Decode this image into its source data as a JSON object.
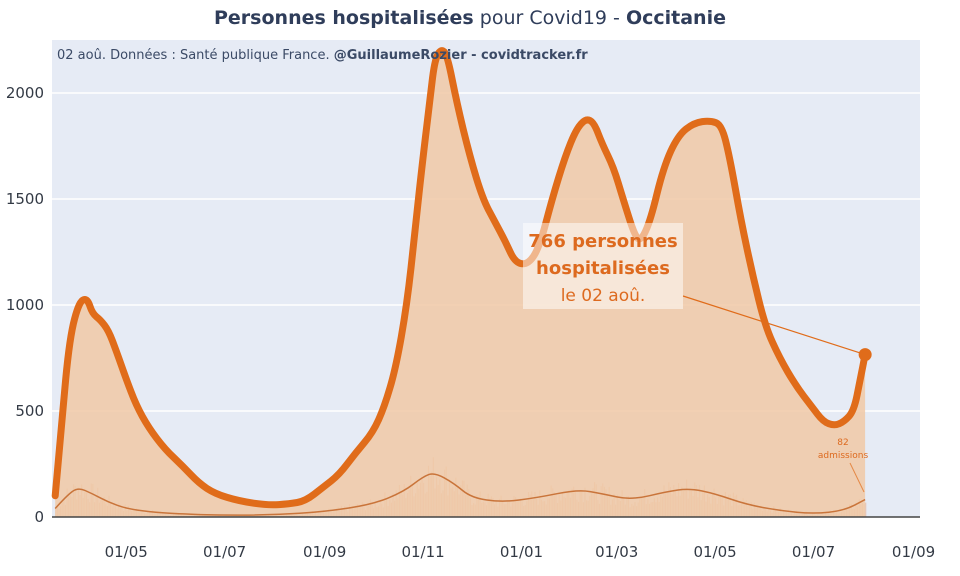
{
  "title": {
    "part1": "Personnes hospitalisées",
    "part2": " pour Covid19 - ",
    "part3": "Occitanie"
  },
  "subtitle": {
    "part1": "02 aoû. Données : Santé publique France. ",
    "part2": "@GuillaumeRozier - covidtracker.fr"
  },
  "annotation": {
    "line1": "766 personnes",
    "line2": "hospitalisées",
    "line3": "le 02 aoû."
  },
  "admissions_annotation": {
    "value": "82",
    "label": "admissions"
  },
  "colors": {
    "line": "#e06c1a",
    "area": "#f0c9a6",
    "plot_bg": "#e6ebf5",
    "grid": "#ffffff"
  },
  "chart_data": {
    "type": "area",
    "title": "Personnes hospitalisées pour Covid19 - Occitanie",
    "x_tick_labels": [
      "01/05",
      "01/07",
      "01/09",
      "01/11",
      "01/01",
      "01/03",
      "01/05",
      "01/07",
      "01/09"
    ],
    "y_tick_labels": [
      "0",
      "500",
      "1000",
      "1500",
      "2000"
    ],
    "ylim": [
      0,
      2250
    ],
    "grid": true,
    "series": [
      {
        "role": "hospitalized",
        "points": [
          [
            "2020-03-18",
            100
          ],
          [
            "2020-03-22",
            450
          ],
          [
            "2020-03-27",
            850
          ],
          [
            "2020-04-02",
            1020
          ],
          [
            "2020-04-07",
            1030
          ],
          [
            "2020-04-10",
            960
          ],
          [
            "2020-04-15",
            930
          ],
          [
            "2020-04-20",
            880
          ],
          [
            "2020-04-25",
            780
          ],
          [
            "2020-05-01",
            650
          ],
          [
            "2020-05-07",
            530
          ],
          [
            "2020-05-15",
            420
          ],
          [
            "2020-05-25",
            320
          ],
          [
            "2020-06-05",
            240
          ],
          [
            "2020-06-15",
            160
          ],
          [
            "2020-06-25",
            110
          ],
          [
            "2020-07-10",
            75
          ],
          [
            "2020-07-28",
            55
          ],
          [
            "2020-08-10",
            62
          ],
          [
            "2020-08-20",
            75
          ],
          [
            "2020-08-31",
            140
          ],
          [
            "2020-09-10",
            200
          ],
          [
            "2020-09-20",
            300
          ],
          [
            "2020-10-01",
            400
          ],
          [
            "2020-10-08",
            520
          ],
          [
            "2020-10-15",
            700
          ],
          [
            "2020-10-22",
            1000
          ],
          [
            "2020-10-27",
            1350
          ],
          [
            "2020-11-01",
            1700
          ],
          [
            "2020-11-05",
            1950
          ],
          [
            "2020-11-08",
            2150
          ],
          [
            "2020-11-12",
            2210
          ],
          [
            "2020-11-16",
            2180
          ],
          [
            "2020-11-22",
            1950
          ],
          [
            "2020-11-30",
            1700
          ],
          [
            "2020-12-08",
            1500
          ],
          [
            "2020-12-15",
            1400
          ],
          [
            "2020-12-22",
            1300
          ],
          [
            "2020-12-28",
            1200
          ],
          [
            "2021-01-05",
            1190
          ],
          [
            "2021-01-12",
            1270
          ],
          [
            "2021-01-20",
            1500
          ],
          [
            "2021-01-28",
            1700
          ],
          [
            "2021-02-04",
            1830
          ],
          [
            "2021-02-10",
            1880
          ],
          [
            "2021-02-15",
            1860
          ],
          [
            "2021-02-20",
            1760
          ],
          [
            "2021-02-27",
            1650
          ],
          [
            "2021-03-05",
            1500
          ],
          [
            "2021-03-12",
            1330
          ],
          [
            "2021-03-16",
            1300
          ],
          [
            "2021-03-22",
            1400
          ],
          [
            "2021-03-30",
            1650
          ],
          [
            "2021-04-08",
            1800
          ],
          [
            "2021-04-18",
            1860
          ],
          [
            "2021-04-28",
            1870
          ],
          [
            "2021-05-05",
            1850
          ],
          [
            "2021-05-10",
            1700
          ],
          [
            "2021-05-17",
            1400
          ],
          [
            "2021-05-24",
            1150
          ],
          [
            "2021-06-01",
            900
          ],
          [
            "2021-06-10",
            750
          ],
          [
            "2021-06-20",
            620
          ],
          [
            "2021-06-30",
            520
          ],
          [
            "2021-07-07",
            450
          ],
          [
            "2021-07-14",
            430
          ],
          [
            "2021-07-20",
            450
          ],
          [
            "2021-07-26",
            500
          ],
          [
            "2021-07-30",
            650
          ],
          [
            "2021-08-02",
            766
          ]
        ]
      },
      {
        "role": "admissions",
        "points": [
          [
            "2020-03-18",
            40
          ],
          [
            "2020-03-25",
            100
          ],
          [
            "2020-04-01",
            140
          ],
          [
            "2020-04-10",
            110
          ],
          [
            "2020-04-20",
            70
          ],
          [
            "2020-05-01",
            40
          ],
          [
            "2020-05-15",
            25
          ],
          [
            "2020-06-01",
            15
          ],
          [
            "2020-07-01",
            8
          ],
          [
            "2020-08-01",
            10
          ],
          [
            "2020-09-01",
            25
          ],
          [
            "2020-10-01",
            60
          ],
          [
            "2020-10-20",
            120
          ],
          [
            "2020-11-01",
            190
          ],
          [
            "2020-11-08",
            210
          ],
          [
            "2020-11-20",
            160
          ],
          [
            "2020-12-01",
            90
          ],
          [
            "2020-12-20",
            70
          ],
          [
            "2021-01-10",
            90
          ],
          [
            "2021-02-05",
            130
          ],
          [
            "2021-02-20",
            110
          ],
          [
            "2021-03-10",
            80
          ],
          [
            "2021-04-01",
            120
          ],
          [
            "2021-04-15",
            135
          ],
          [
            "2021-05-01",
            110
          ],
          [
            "2021-05-20",
            60
          ],
          [
            "2021-06-10",
            30
          ],
          [
            "2021-07-01",
            15
          ],
          [
            "2021-07-20",
            30
          ],
          [
            "2021-08-02",
            82
          ]
        ]
      }
    ]
  }
}
